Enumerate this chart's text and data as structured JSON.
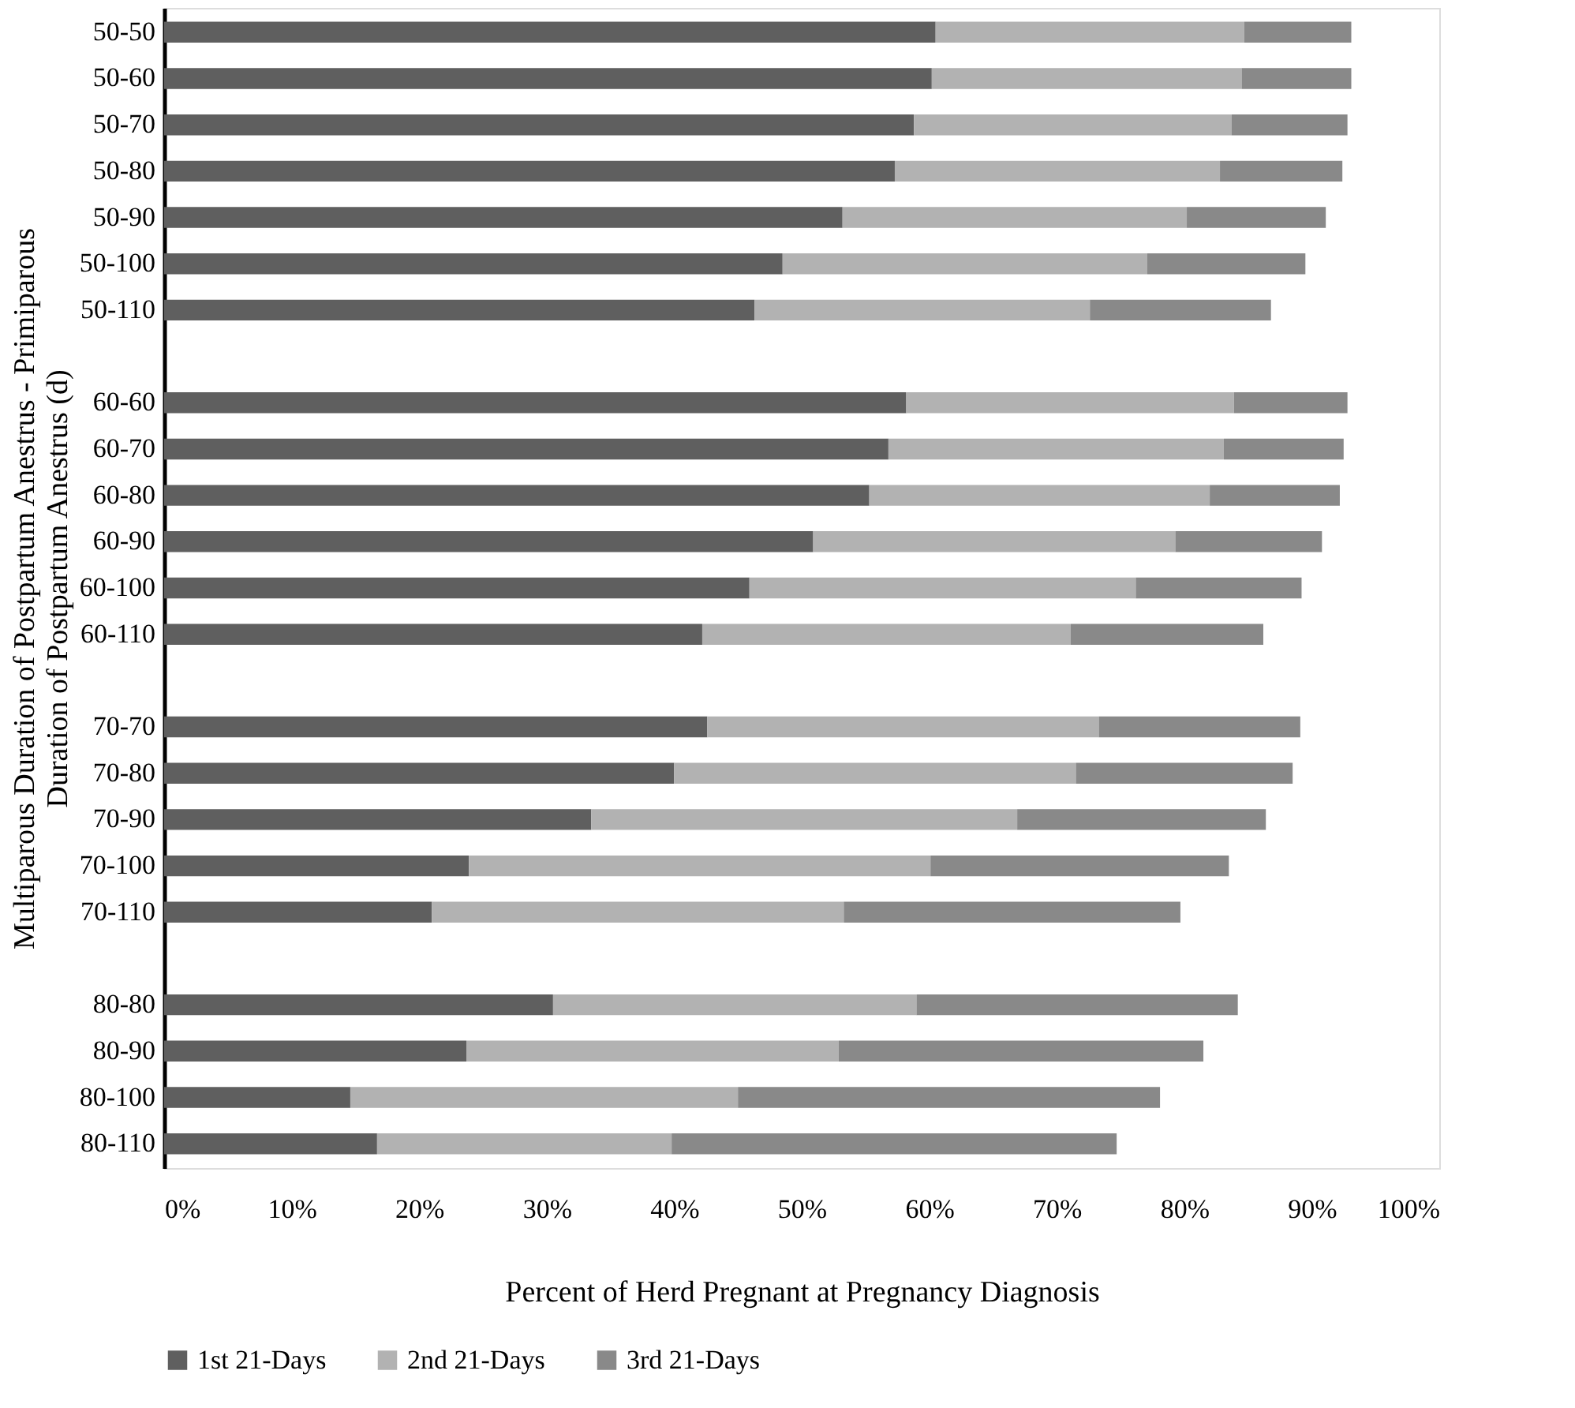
{
  "chart_data": {
    "type": "bar",
    "orientation": "horizontal",
    "stacked": true,
    "xlabel": "Percent of Herd Pregnant at Pregnancy Diagnosis",
    "ylabel": "Multiparous Duration of Postpartum Anestrus - Primiparous\nDuration of Postpartum Anestrus (d)",
    "categories": [
      "50-50",
      "50-60",
      "50-70",
      "50-80",
      "50-90",
      "50-100",
      "50-110",
      null,
      "60-60",
      "60-70",
      "60-80",
      "60-90",
      "60-100",
      "60-110",
      null,
      "70-70",
      "70-80",
      "70-90",
      "70-100",
      "70-110",
      null,
      "80-80",
      "80-90",
      "80-100",
      "80-110"
    ],
    "series": [
      {
        "name": "1st 21-Days",
        "color": "#5f5f5f",
        "values": [
          60.5,
          60.2,
          58.8,
          57.3,
          53.2,
          48.5,
          46.3,
          null,
          58.2,
          56.8,
          55.3,
          50.9,
          45.9,
          42.2,
          null,
          42.6,
          40.0,
          33.5,
          23.9,
          21.0,
          null,
          30.5,
          23.7,
          14.6,
          16.7
        ]
      },
      {
        "name": "2nd 21-Days",
        "color": "#b2b2b2",
        "values": [
          24.2,
          24.3,
          24.9,
          25.5,
          27.0,
          28.6,
          26.3,
          null,
          25.7,
          26.3,
          26.7,
          28.4,
          30.3,
          28.9,
          null,
          30.7,
          31.5,
          33.4,
          36.2,
          32.3,
          null,
          28.5,
          29.2,
          30.4,
          23.1
        ]
      },
      {
        "name": "3rd 21-Days",
        "color": "#898989",
        "values": [
          8.4,
          8.6,
          9.1,
          9.6,
          10.9,
          12.4,
          14.2,
          null,
          8.9,
          9.4,
          10.2,
          11.5,
          13.0,
          15.1,
          null,
          15.8,
          17.0,
          19.5,
          23.4,
          26.4,
          null,
          25.2,
          28.6,
          33.1,
          34.9
        ]
      }
    ],
    "xlim": [
      0,
      100
    ],
    "xticks": [
      {
        "value": 0,
        "label": "0%"
      },
      {
        "value": 10,
        "label": "10%"
      },
      {
        "value": 20,
        "label": "20%"
      },
      {
        "value": 30,
        "label": "30%"
      },
      {
        "value": 40,
        "label": "40%"
      },
      {
        "value": 50,
        "label": "50%"
      },
      {
        "value": 60,
        "label": "60%"
      },
      {
        "value": 70,
        "label": "70%"
      },
      {
        "value": 80,
        "label": "80%"
      },
      {
        "value": 90,
        "label": "90%"
      },
      {
        "value": 100,
        "label": "100%"
      }
    ],
    "grid": false,
    "legend": "bottom"
  }
}
